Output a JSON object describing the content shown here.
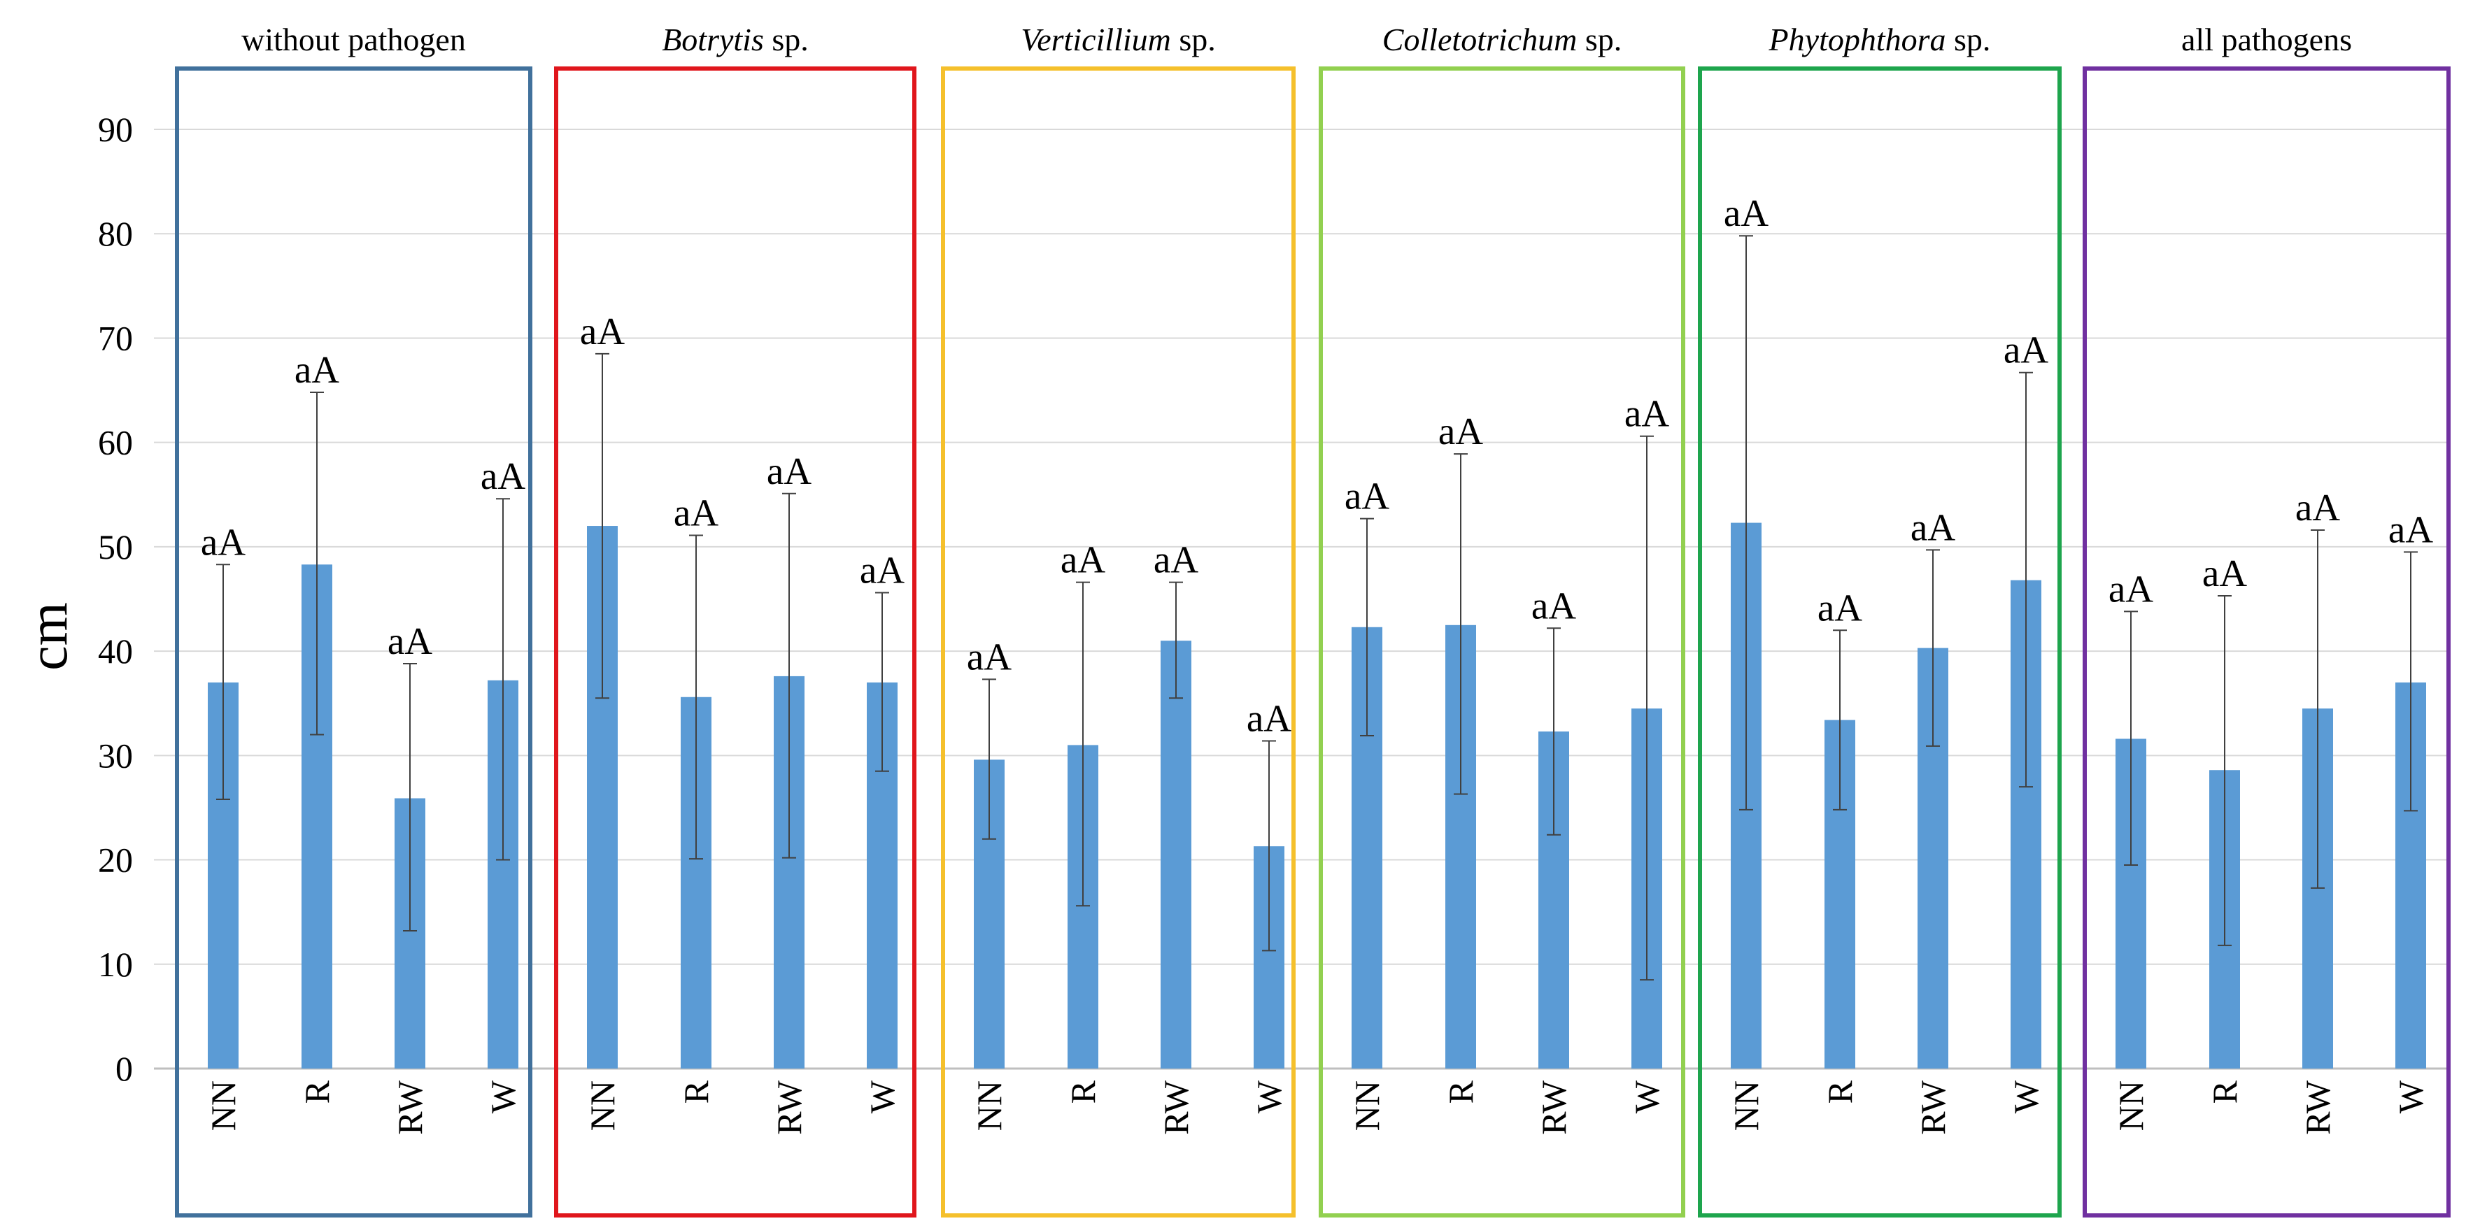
{
  "chart_data": {
    "type": "bar",
    "ylabel": "cm",
    "ylim": [
      0,
      95
    ],
    "yticks": [
      0,
      10,
      20,
      30,
      40,
      50,
      60,
      70,
      80,
      90
    ],
    "grid": true,
    "categories": [
      "NN",
      "R",
      "RW",
      "W"
    ],
    "groups": [
      {
        "title": "without pathogen",
        "title_italic": "",
        "color": "#41719c",
        "values": [
          37,
          48.3,
          25.9,
          37.2
        ],
        "err_low": [
          25.8,
          32,
          13.2,
          20
        ],
        "err_high": [
          48.3,
          64.8,
          38.8,
          54.6
        ],
        "labels": [
          "aA",
          "aA",
          "aA",
          "aA"
        ]
      },
      {
        "title": " sp.",
        "title_italic": "Botrytis",
        "color": "#e0161c",
        "values": [
          52,
          35.6,
          37.6,
          37
        ],
        "err_low": [
          35.5,
          20.1,
          20.2,
          28.5
        ],
        "err_high": [
          68.5,
          51.1,
          55.1,
          45.6
        ],
        "labels": [
          "aA",
          "aA",
          "aA",
          "aA"
        ]
      },
      {
        "title": " sp.",
        "title_italic": "Verticillium",
        "color": "#f5c02c",
        "values": [
          29.6,
          31,
          41,
          21.3
        ],
        "err_low": [
          22,
          15.6,
          35.5,
          11.3
        ],
        "err_high": [
          37.3,
          46.6,
          46.6,
          31.4
        ],
        "labels": [
          "aA",
          "aA",
          "aA",
          "aA"
        ]
      },
      {
        "title": " sp.",
        "title_italic": "Colletotrichum",
        "color": "#92d050",
        "values": [
          42.3,
          42.5,
          32.3,
          34.5
        ],
        "err_low": [
          31.9,
          26.3,
          22.4,
          8.5
        ],
        "err_high": [
          52.7,
          58.9,
          42.2,
          60.6
        ],
        "labels": [
          "aA",
          "aA",
          "aA",
          "aA"
        ]
      },
      {
        "title": " sp.",
        "title_italic": "Phytophthora",
        "color": "#1ea54d",
        "values": [
          52.3,
          33.4,
          40.3,
          46.8
        ],
        "err_low": [
          24.8,
          24.8,
          30.9,
          27
        ],
        "err_high": [
          79.8,
          42,
          49.7,
          66.7
        ],
        "labels": [
          "aA",
          "aA",
          "aA",
          "aA"
        ]
      },
      {
        "title": "all pathogens",
        "title_italic": "",
        "color": "#7030a0",
        "values": [
          31.6,
          28.6,
          34.5,
          37
        ],
        "err_low": [
          19.5,
          11.8,
          17.3,
          24.7
        ],
        "err_high": [
          43.8,
          45.3,
          51.6,
          49.5
        ],
        "labels": [
          "aA",
          "aA",
          "aA",
          "aA"
        ]
      }
    ]
  }
}
